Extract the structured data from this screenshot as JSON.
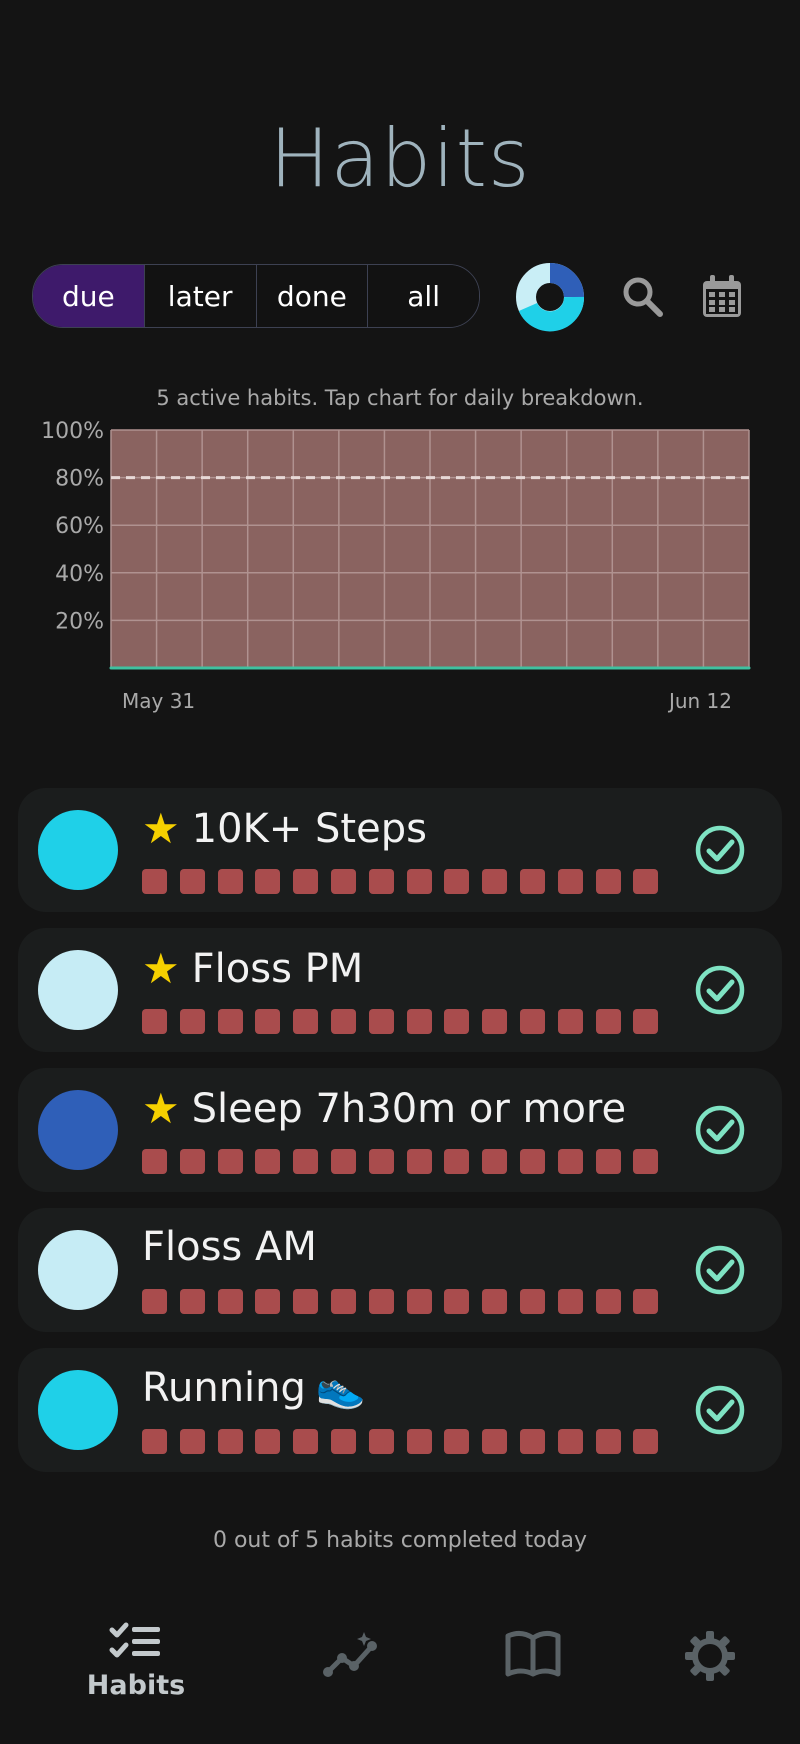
{
  "header": {
    "title": "Habits"
  },
  "filters": {
    "tabs": [
      {
        "label": "due",
        "active": true
      },
      {
        "label": "later",
        "active": false
      },
      {
        "label": "done",
        "active": false
      },
      {
        "label": "all",
        "active": false
      }
    ]
  },
  "toolbar": {
    "icons": [
      "progress-donut-icon",
      "search-icon",
      "calendar-icon"
    ]
  },
  "chart": {
    "caption": "5 active habits. Tap chart for daily breakdown.",
    "x_start_label": "May 31",
    "x_end_label": "Jun 12"
  },
  "chart_data": {
    "type": "area",
    "title": "",
    "xlabel": "",
    "ylabel": "",
    "y_tick_labels": [
      "100%",
      "80%",
      "60%",
      "40%",
      "20%"
    ],
    "x_tick_labels": [
      "May 31",
      "Jun 12"
    ],
    "ylim": [
      0,
      100
    ],
    "target_line": 80,
    "grid": true,
    "series": [
      {
        "values": [
          0,
          0,
          0,
          0,
          0,
          0,
          0,
          0,
          0,
          0,
          0,
          0,
          0,
          0
        ]
      }
    ],
    "colors": {
      "background": "#8a6360",
      "line": "#3fc1a0",
      "target": "#e7d8d6"
    }
  },
  "habits": [
    {
      "name": "10K+ Steps",
      "starred": true,
      "emoji": "",
      "color": "#1fd0e8",
      "days": 14
    },
    {
      "name": "Floss PM",
      "starred": true,
      "emoji": "",
      "color": "#c6ecf5",
      "days": 14
    },
    {
      "name": "Sleep 7h30m or more",
      "starred": true,
      "emoji": "",
      "color": "#2f5fb8",
      "days": 14
    },
    {
      "name": "Floss AM",
      "starred": false,
      "emoji": "",
      "color": "#c6ecf5",
      "days": 14
    },
    {
      "name": "Running",
      "starred": false,
      "emoji": "👟",
      "color": "#1fd0e8",
      "days": 14
    }
  ],
  "summary": {
    "text": "0 out of 5 habits completed today"
  },
  "nav": {
    "items": [
      {
        "label": "Habits",
        "icon": "checklist-icon",
        "active": true
      },
      {
        "label": "",
        "icon": "insights-icon",
        "active": false
      },
      {
        "label": "",
        "icon": "book-icon",
        "active": false
      },
      {
        "label": "",
        "icon": "gear-icon",
        "active": false
      }
    ]
  },
  "colors": {
    "background": "#141414",
    "card": "#1b1d1d",
    "accent_active": "#3e1a6b",
    "check": "#7fe3c3",
    "day_box_missed": "#a94c4d",
    "star": "#f5d000"
  }
}
